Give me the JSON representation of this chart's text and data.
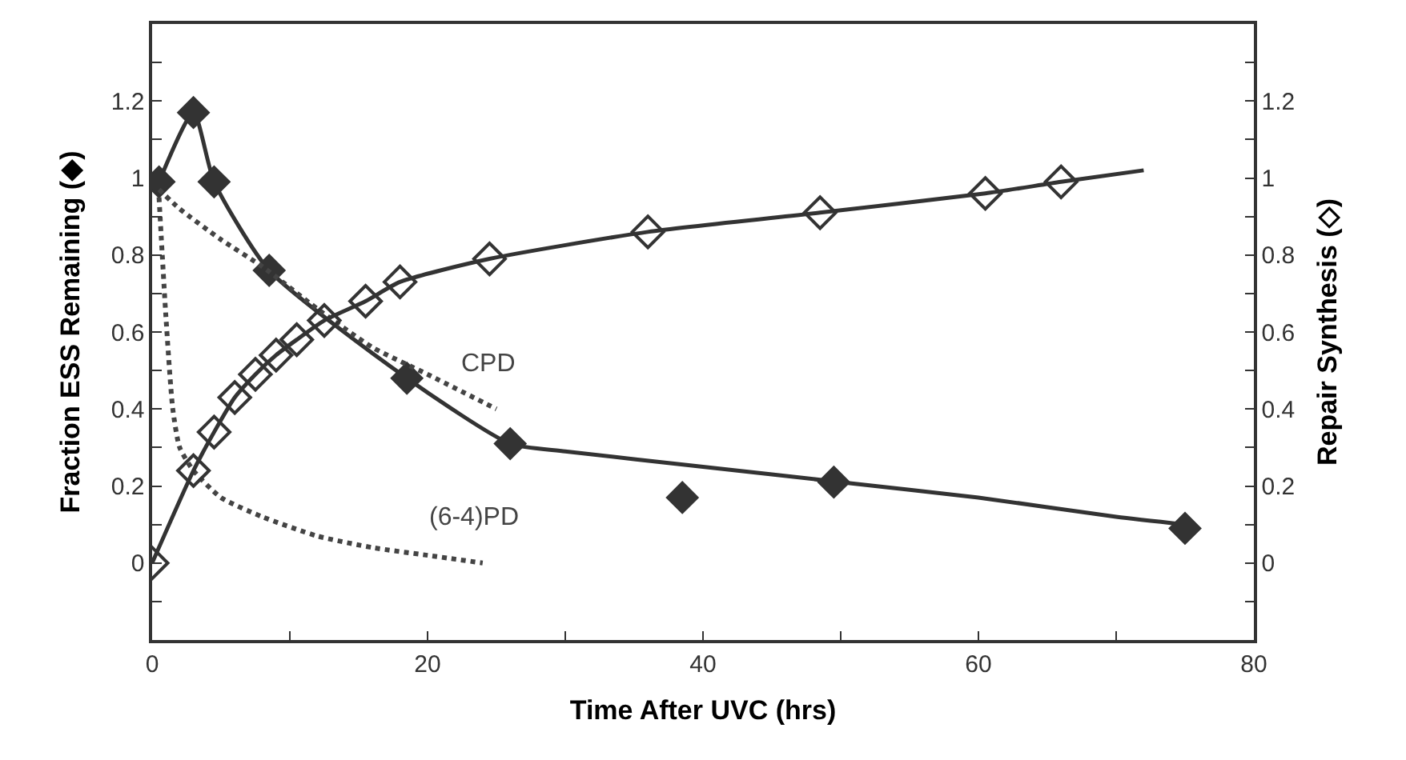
{
  "chart_data": {
    "type": "line",
    "xlabel": "Time After UVC (hrs)",
    "ylabel": "Fraction ESS Remaining (◆)",
    "y2label": "Repair Synthesis (◇)",
    "xlim": [
      0,
      80
    ],
    "xticks": [
      0,
      {
        "value": 10,
        "label": null
      },
      20,
      {
        "value": 30,
        "label": null
      },
      40,
      {
        "value": 50,
        "label": null
      },
      60,
      {
        "value": 70,
        "label": null
      },
      80
    ],
    "ylim": [
      -0.2,
      1.4
    ],
    "yticks": [
      {
        "value": -0.1,
        "label": null
      },
      0,
      {
        "value": 0.1,
        "label": null
      },
      0.2,
      {
        "value": 0.3,
        "label": null
      },
      0.4,
      {
        "value": 0.5,
        "label": null
      },
      0.6,
      {
        "value": 0.7,
        "label": null
      },
      0.8,
      {
        "value": 0.9,
        "label": null
      },
      1,
      {
        "value": 1.1,
        "label": null
      },
      1.2,
      {
        "value": 1.3,
        "label": null
      }
    ],
    "y2lim": [
      -0.2,
      1.4
    ],
    "y2ticks": [
      {
        "value": -0.1,
        "label": null
      },
      0,
      {
        "value": 0.1,
        "label": null
      },
      0.2,
      {
        "value": 0.3,
        "label": null
      },
      0.4,
      {
        "value": 0.5,
        "label": null
      },
      0.6,
      {
        "value": 0.7,
        "label": null
      },
      0.8,
      {
        "value": 0.9,
        "label": null
      },
      1,
      {
        "value": 1.1,
        "label": null
      },
      1.2,
      {
        "value": 1.3,
        "label": null
      }
    ],
    "legend": false,
    "series": [
      {
        "marker": "none",
        "line_style": "solid",
        "color": "#333333",
        "x": [
          0.5,
          3,
          4.5,
          8.5,
          18.5,
          26,
          30,
          40,
          50,
          60,
          70,
          75
        ],
        "values": [
          0.99,
          1.17,
          0.99,
          0.76,
          0.48,
          0.31,
          0.29,
          0.25,
          0.21,
          0.17,
          0.12,
          0.1
        ]
      },
      {
        "type": "scatter",
        "marker": "diamond",
        "color": "#333333",
        "x": [
          0.5,
          3,
          4.5,
          8.5,
          18.5,
          26,
          38.5,
          49.5,
          75
        ],
        "values": [
          0.99,
          1.17,
          0.99,
          0.76,
          0.48,
          0.31,
          0.17,
          0.21,
          0.09
        ]
      },
      {
        "marker": "none",
        "line_style": "solid",
        "axis": "y2",
        "color": "#333333",
        "x": [
          0,
          3,
          4.5,
          6,
          7.5,
          9,
          10.5,
          12.5,
          15.5,
          18,
          24.5,
          36,
          48.5,
          60.5,
          66,
          72
        ],
        "values": [
          0,
          0.24,
          0.34,
          0.43,
          0.49,
          0.54,
          0.58,
          0.63,
          0.68,
          0.73,
          0.79,
          0.86,
          0.91,
          0.96,
          0.99,
          1.02
        ]
      },
      {
        "type": "scatter",
        "marker": "diamond-open",
        "axis": "y2",
        "color": "#333333",
        "x": [
          0,
          3,
          4.5,
          6,
          7.5,
          9,
          10.5,
          12.5,
          15.5,
          18,
          24.5,
          36,
          48.5,
          60.5,
          66
        ],
        "values": [
          0,
          0.24,
          0.34,
          0.43,
          0.49,
          0.54,
          0.58,
          0.63,
          0.68,
          0.73,
          0.79,
          0.86,
          0.91,
          0.96,
          0.99
        ]
      },
      {
        "name": "CPD",
        "marker": "none",
        "line_style": "dotted",
        "color": "#444444",
        "x": [
          0.5,
          2,
          5,
          8,
          12,
          16,
          20,
          25
        ],
        "values": [
          0.97,
          0.92,
          0.84,
          0.77,
          0.66,
          0.56,
          0.49,
          0.4
        ]
      },
      {
        "name": "(6-4)PD",
        "marker": "none",
        "line_style": "dotted",
        "color": "#444444",
        "x": [
          0.5,
          1,
          1.5,
          2,
          3,
          5,
          8,
          12,
          16,
          20,
          24
        ],
        "values": [
          0.95,
          0.64,
          0.4,
          0.3,
          0.24,
          0.17,
          0.12,
          0.07,
          0.04,
          0.02,
          0.0
        ]
      }
    ]
  }
}
